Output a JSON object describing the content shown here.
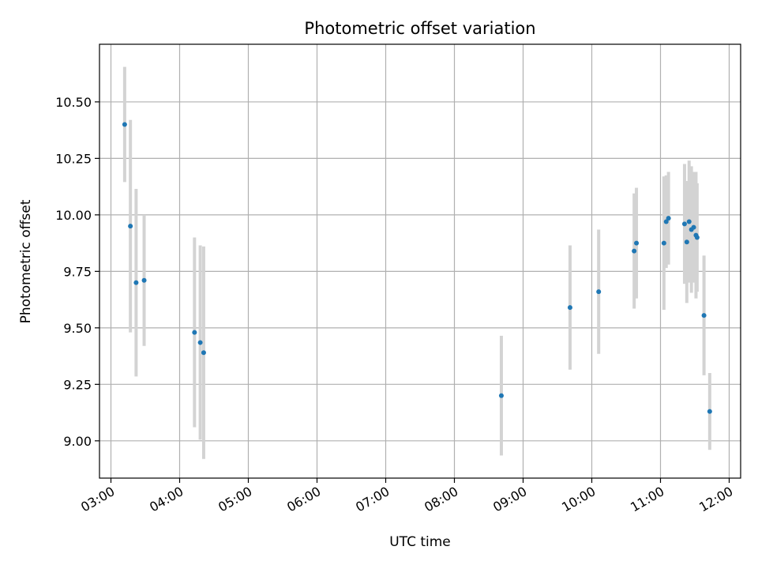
{
  "chart_data": {
    "type": "scatter",
    "title": "Photometric offset variation",
    "xlabel": "UTC time",
    "ylabel": "Photometric offset",
    "xlim": [
      "02:50",
      "12:10"
    ],
    "ylim": [
      8.835,
      10.755
    ],
    "grid": true,
    "x_ticks": [
      "03:00",
      "04:00",
      "05:00",
      "06:00",
      "07:00",
      "08:00",
      "09:00",
      "10:00",
      "11:00",
      "12:00"
    ],
    "y_ticks": [
      "9.00",
      "9.25",
      "9.50",
      "9.75",
      "10.00",
      "10.25",
      "10.50"
    ],
    "colors": {
      "point": "#1f77b4",
      "errorbar": "#d3d3d3",
      "grid": "#b0b0b0"
    },
    "series": [
      {
        "points": [
          {
            "x": "03:12",
            "y": 10.4,
            "err": 0.255
          },
          {
            "x": "03:17",
            "y": 9.95,
            "err": 0.47
          },
          {
            "x": "03:22",
            "y": 9.7,
            "err": 0.415
          },
          {
            "x": "03:29",
            "y": 9.71,
            "err": 0.29
          },
          {
            "x": "04:13",
            "y": 9.48,
            "err": 0.42
          },
          {
            "x": "04:18",
            "y": 9.435,
            "err": 0.43
          },
          {
            "x": "04:21",
            "y": 9.39,
            "err": 0.47
          },
          {
            "x": "08:41",
            "y": 9.2,
            "err": 0.265
          },
          {
            "x": "09:41",
            "y": 9.59,
            "err": 0.275
          },
          {
            "x": "10:06",
            "y": 9.66,
            "err": 0.275
          },
          {
            "x": "10:37",
            "y": 9.84,
            "err": 0.255
          },
          {
            "x": "10:39",
            "y": 9.875,
            "err": 0.245
          },
          {
            "x": "11:03",
            "y": 9.875,
            "err": 0.295
          },
          {
            "x": "11:05",
            "y": 9.97,
            "err": 0.205
          },
          {
            "x": "11:07",
            "y": 9.985,
            "err": 0.205
          },
          {
            "x": "11:21",
            "y": 9.96,
            "err": 0.265
          },
          {
            "x": "11:23",
            "y": 9.88,
            "err": 0.27
          },
          {
            "x": "11:25",
            "y": 9.97,
            "err": 0.27
          },
          {
            "x": "11:27",
            "y": 9.935,
            "err": 0.28
          },
          {
            "x": "11:29",
            "y": 9.945,
            "err": 0.245
          },
          {
            "x": "11:31",
            "y": 9.91,
            "err": 0.28
          },
          {
            "x": "11:32",
            "y": 9.9,
            "err": 0.24
          },
          {
            "x": "11:38",
            "y": 9.555,
            "err": 0.265
          },
          {
            "x": "11:43",
            "y": 9.13,
            "err": 0.17
          }
        ]
      }
    ]
  }
}
